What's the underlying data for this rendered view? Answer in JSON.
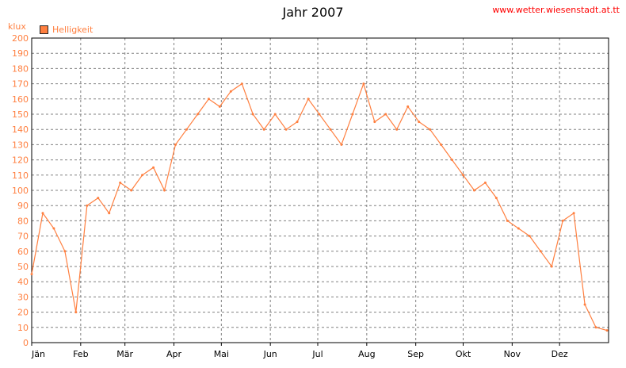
{
  "header": {
    "title": "Jahr 2007",
    "url": "www.wetter.wiesenstadt.at.tt"
  },
  "chart_data": {
    "type": "line",
    "title": "Jahr 2007",
    "ylabel": "klux",
    "ylim": [
      0,
      200
    ],
    "yticks": [
      0,
      10,
      20,
      30,
      40,
      50,
      60,
      70,
      80,
      90,
      100,
      110,
      120,
      130,
      140,
      150,
      160,
      170,
      180,
      190,
      200
    ],
    "xlim": [
      0,
      365
    ],
    "month_labels": [
      "Jän",
      "Feb",
      "Mär",
      "Apr",
      "Mai",
      "Jun",
      "Jul",
      "Aug",
      "Sep",
      "Okt",
      "Nov",
      "Dez"
    ],
    "month_start_days": [
      0,
      31,
      59,
      90,
      120,
      151,
      181,
      212,
      243,
      273,
      304,
      334
    ],
    "grid": true,
    "legend_position": "top-left",
    "colors": {
      "series": "#ff7f3f",
      "grid": "#808080",
      "text": "#ff7f3f"
    },
    "series": [
      {
        "name": "Helligkeit",
        "x": [
          0,
          7,
          14,
          21,
          28,
          35,
          42,
          49,
          56,
          63,
          70,
          77,
          84,
          91,
          98,
          105,
          112,
          119,
          126,
          133,
          140,
          147,
          154,
          161,
          168,
          175,
          182,
          189,
          196,
          203,
          210,
          217,
          224,
          231,
          238,
          245,
          252,
          259,
          266,
          273,
          280,
          287,
          294,
          301,
          308,
          315,
          322,
          329,
          336,
          343,
          350,
          357,
          364
        ],
        "values": [
          45,
          85,
          75,
          60,
          20,
          90,
          95,
          85,
          105,
          100,
          110,
          115,
          100,
          130,
          140,
          150,
          160,
          155,
          165,
          170,
          150,
          140,
          150,
          140,
          145,
          160,
          150,
          140,
          130,
          150,
          170,
          145,
          150,
          140,
          155,
          145,
          140,
          130,
          120,
          110,
          100,
          105,
          95,
          80,
          75,
          70,
          60,
          50,
          80,
          85,
          25,
          10,
          8
        ]
      }
    ]
  }
}
